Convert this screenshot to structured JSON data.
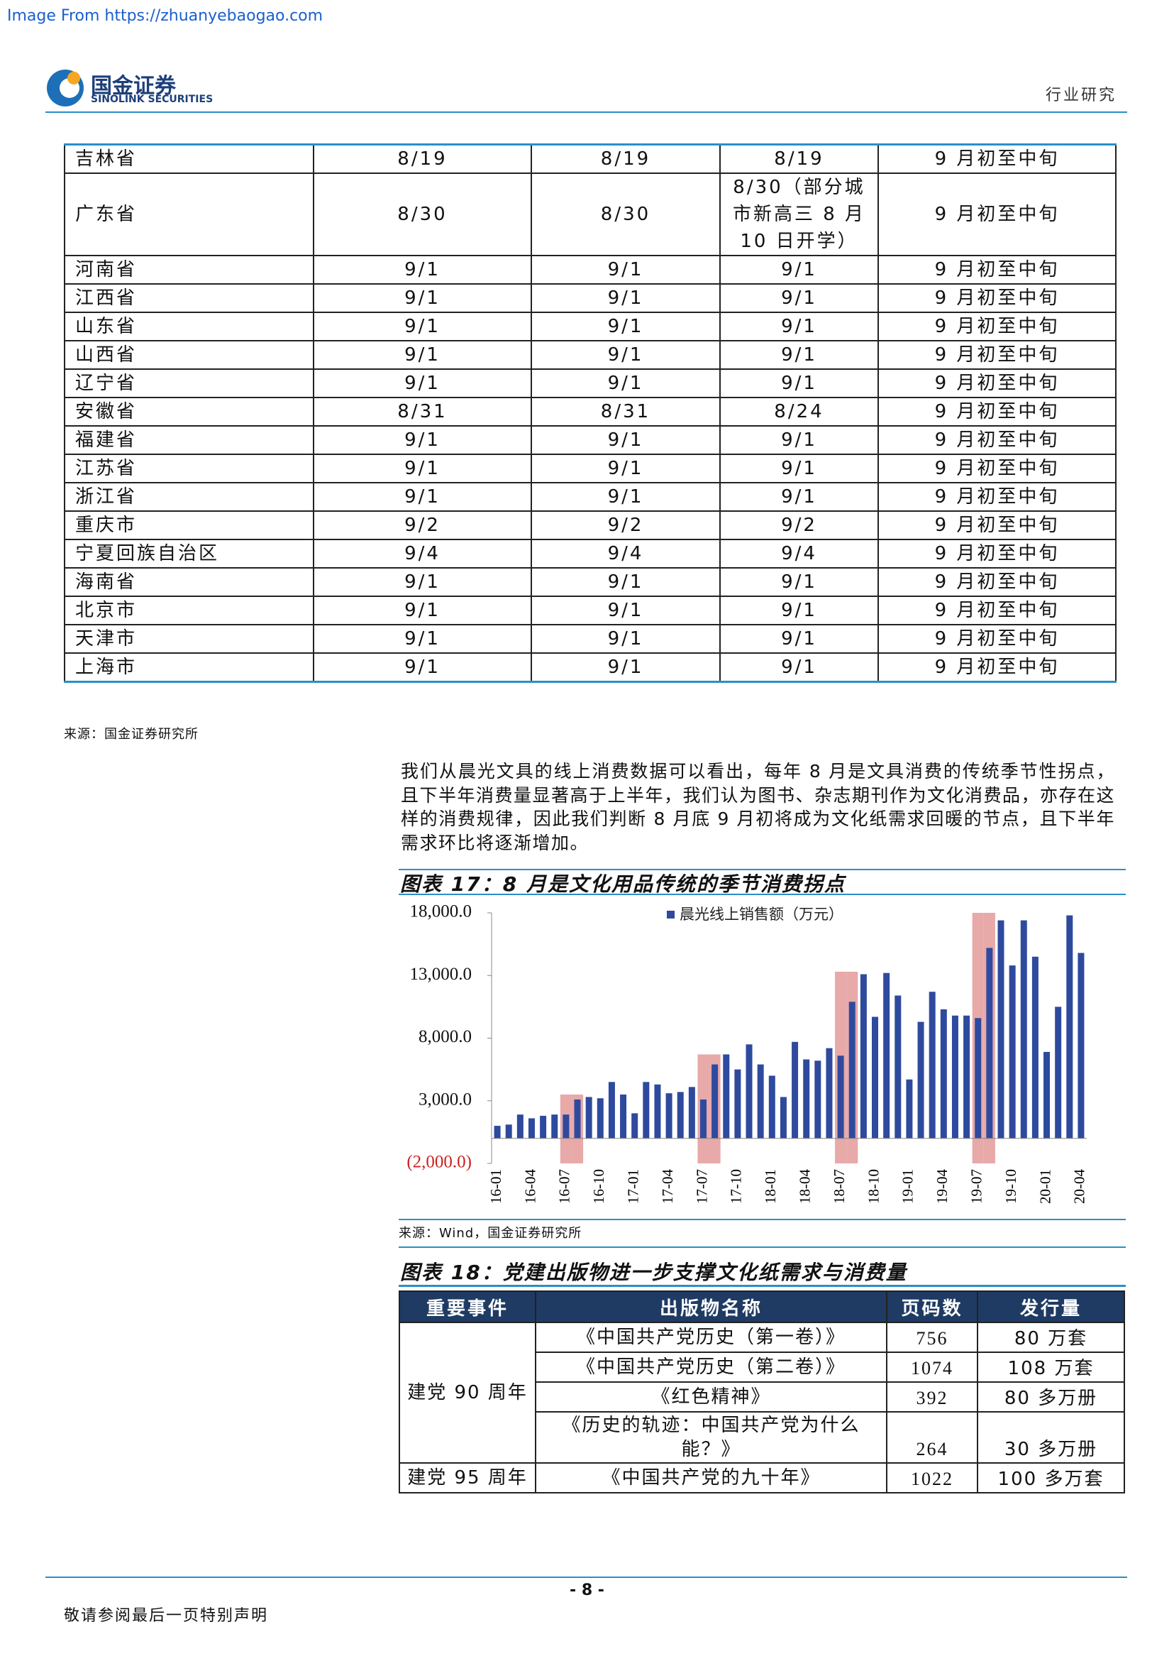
{
  "header": {
    "source_banner": "Image From https://zhuanyebaogao.com",
    "logo_cn": "国金证券",
    "logo_en": "SINOLINK SECURITIES",
    "section": "行业研究"
  },
  "table1": {
    "rows": [
      [
        "吉林省",
        "8/19",
        "8/19",
        "8/19",
        "9 月初至中旬"
      ],
      [
        "广东省",
        "8/30",
        "8/30",
        "8/30（部分城市新高三 8 月 10 日开学）",
        "9 月初至中旬"
      ],
      [
        "河南省",
        "9/1",
        "9/1",
        "9/1",
        "9 月初至中旬"
      ],
      [
        "江西省",
        "9/1",
        "9/1",
        "9/1",
        "9 月初至中旬"
      ],
      [
        "山东省",
        "9/1",
        "9/1",
        "9/1",
        "9 月初至中旬"
      ],
      [
        "山西省",
        "9/1",
        "9/1",
        "9/1",
        "9 月初至中旬"
      ],
      [
        "辽宁省",
        "9/1",
        "9/1",
        "9/1",
        "9 月初至中旬"
      ],
      [
        "安徽省",
        "8/31",
        "8/31",
        "8/24",
        "9 月初至中旬"
      ],
      [
        "福建省",
        "9/1",
        "9/1",
        "9/1",
        "9 月初至中旬"
      ],
      [
        "江苏省",
        "9/1",
        "9/1",
        "9/1",
        "9 月初至中旬"
      ],
      [
        "浙江省",
        "9/1",
        "9/1",
        "9/1",
        "9 月初至中旬"
      ],
      [
        "重庆市",
        "9/2",
        "9/2",
        "9/2",
        "9 月初至中旬"
      ],
      [
        "宁夏回族自治区",
        "9/4",
        "9/4",
        "9/4",
        "9 月初至中旬"
      ],
      [
        "海南省",
        "9/1",
        "9/1",
        "9/1",
        "9 月初至中旬"
      ],
      [
        "北京市",
        "9/1",
        "9/1",
        "9/1",
        "9 月初至中旬"
      ],
      [
        "天津市",
        "9/1",
        "9/1",
        "9/1",
        "9 月初至中旬"
      ],
      [
        "上海市",
        "9/1",
        "9/1",
        "9/1",
        "9 月初至中旬"
      ]
    ],
    "source": "来源：国金证券研究所"
  },
  "paragraph": "我们从晨光文具的线上消费数据可以看出，每年 8 月是文具消费的传统季节性拐点，且下半年消费量显著高于上半年，我们认为图书、杂志期刊作为文化消费品，亦存在这样的消费规律，因此我们判断 8 月底 9 月初将成为文化纸需求回暖的节点，且下半年需求环比将逐渐增加。",
  "figure17": {
    "title": "图表 17：8 月是文化用品传统的季节消费拐点",
    "source": "来源：Wind，国金证券研究所"
  },
  "chart_data": {
    "type": "bar",
    "categories": [
      "16-01",
      null,
      null,
      "16-04",
      null,
      null,
      "16-07",
      null,
      null,
      "16-10",
      null,
      null,
      "17-01",
      null,
      null,
      "17-04",
      null,
      null,
      "17-07",
      null,
      null,
      "17-10",
      null,
      null,
      "18-01",
      null,
      null,
      "18-04",
      null,
      null,
      "18-07",
      null,
      null,
      "18-10",
      null,
      null,
      "19-01",
      null,
      null,
      "19-04",
      null,
      null,
      "19-07",
      null,
      null,
      "19-10",
      null,
      null,
      "20-01",
      null,
      null,
      "20-04"
    ],
    "series": [
      {
        "color": "#e8a9a9",
        "values": [
          null,
          null,
          null,
          null,
          null,
          null,
          3500,
          3500,
          null,
          null,
          null,
          null,
          null,
          null,
          null,
          null,
          null,
          null,
          6700,
          6700,
          null,
          null,
          null,
          null,
          null,
          null,
          null,
          null,
          null,
          null,
          13300,
          13300,
          null,
          null,
          null,
          null,
          null,
          null,
          null,
          null,
          null,
          null,
          18000,
          18000,
          null,
          null,
          null,
          null,
          null,
          null,
          null,
          null
        ]
      },
      {
        "name": "晨光线上销售额（万元）",
        "color": "#2e4a9e",
        "values": [
          1000,
          1100,
          1900,
          1600,
          1800,
          1900,
          1900,
          3100,
          3300,
          3200,
          4500,
          3500,
          2000,
          4500,
          4300,
          3600,
          3700,
          4100,
          3100,
          5900,
          6700,
          5500,
          7500,
          5900,
          5000,
          3300,
          7700,
          6300,
          6200,
          7200,
          6600,
          10900,
          13100,
          9700,
          13200,
          11400,
          4700,
          9300,
          11700,
          10300,
          9800,
          9800,
          9600,
          15200,
          17400,
          13800,
          17400,
          14500,
          6900,
          10500,
          17800,
          14800
        ]
      }
    ],
    "ylim": [
      -2000,
      18000
    ],
    "yticks": [
      {
        "value": -2000,
        "label": "(2,000.0)"
      },
      {
        "value": 3000,
        "label": "3,000.0"
      },
      {
        "value": 8000,
        "label": "8,000.0"
      },
      {
        "value": 13000,
        "label": "13,000.0"
      },
      {
        "value": 18000,
        "label": "18,000.0"
      }
    ],
    "negative_color": "#d02020"
  },
  "figure18": {
    "title": "图表 18：党建出版物进一步支撑文化纸需求与消费量",
    "header": [
      "重要事件",
      "出版物名称",
      "页码数",
      "发行量"
    ],
    "groups": [
      {
        "event": "建党 90 周年",
        "items": [
          {
            "title": "《中国共产党历史（第一卷）》",
            "pages": 756,
            "circulation": "80 万套"
          },
          {
            "title": "《中国共产党历史（第二卷）》",
            "pages": 1074,
            "circulation": "108 万套"
          },
          {
            "title": "《红色精神》",
            "pages": 392,
            "circulation": "80 多万册"
          },
          {
            "title": "《历史的轨迹：中国共产党为什么能？》",
            "pages": 264,
            "circulation": "30 多万册"
          }
        ]
      },
      {
        "event": "建党 95 周年",
        "items": [
          {
            "title": "《中国共产党的九十年》",
            "pages": 1022,
            "circulation": "100 多万套"
          }
        ]
      }
    ]
  },
  "footer": {
    "page": "- 8 -",
    "disclaimer": "敬请参阅最后一页特别声明"
  }
}
